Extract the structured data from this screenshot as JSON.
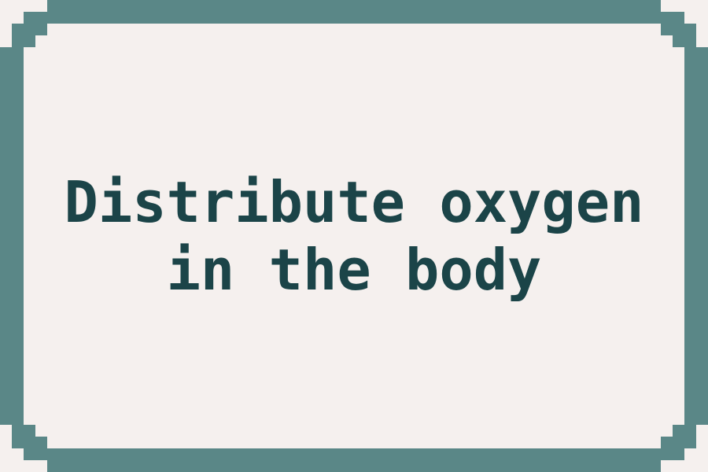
{
  "card": {
    "text": "Distribute oxygen in the body",
    "text_color": "#1b4448",
    "background_color": "#f5f0ee",
    "border_color": "#5a8787"
  }
}
